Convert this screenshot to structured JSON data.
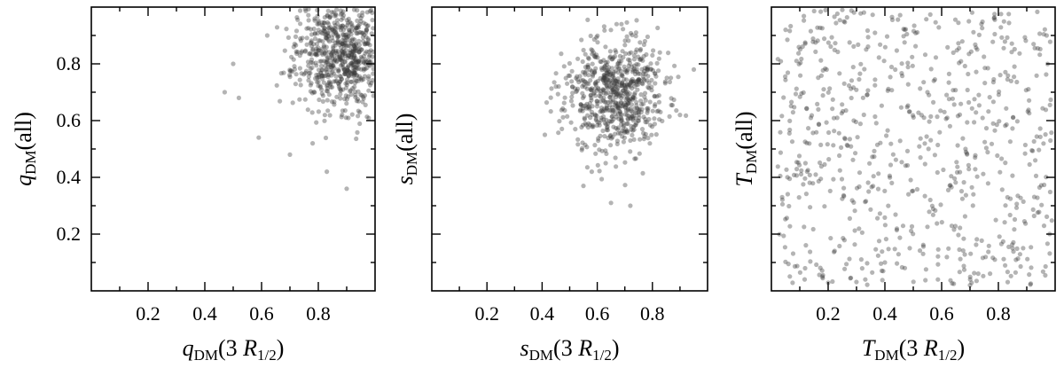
{
  "chart_data": [
    {
      "type": "scatter",
      "panel": "left",
      "xlabel_base": "q",
      "xlabel_sub": "DM",
      "xlabel_arg": "(3 R",
      "xlabel_arg_sub": "1/2",
      "xlabel_close": ")",
      "ylabel_base": "q",
      "ylabel_sub": "DM",
      "ylabel_arg": "(all)",
      "xlim": [
        0.0,
        1.0
      ],
      "ylim": [
        0.0,
        1.0
      ],
      "xticks": [
        "0.2",
        "0.4",
        "0.6",
        "0.8"
      ],
      "yticks": [
        "0.2",
        "0.4",
        "0.6",
        "0.8"
      ],
      "show_y_ticklabels": true,
      "distribution": {
        "kind": "gaussian",
        "n": 650,
        "mean": [
          0.88,
          0.84
        ],
        "std": [
          0.08,
          0.1
        ],
        "clip": [
          0.46,
          0.995,
          0.34,
          0.995
        ],
        "seed": 11
      },
      "sample_points": [
        [
          0.47,
          0.7
        ],
        [
          0.5,
          0.8
        ],
        [
          0.52,
          0.68
        ],
        [
          0.59,
          0.54
        ],
        [
          0.62,
          0.9
        ],
        [
          0.7,
          0.48
        ],
        [
          0.78,
          0.52
        ],
        [
          0.83,
          0.42
        ],
        [
          0.9,
          0.36
        ],
        [
          0.92,
          0.87
        ],
        [
          0.95,
          0.95
        ],
        [
          0.99,
          0.98
        ]
      ]
    },
    {
      "type": "scatter",
      "panel": "middle",
      "xlabel_base": "s",
      "xlabel_sub": "DM",
      "xlabel_arg": "(3 R",
      "xlabel_arg_sub": "1/2",
      "xlabel_close": ")",
      "ylabel_base": "s",
      "ylabel_sub": "DM",
      "ylabel_arg": "(all)",
      "xlim": [
        0.0,
        1.0
      ],
      "ylim": [
        0.0,
        1.0
      ],
      "xticks": [
        "0.2",
        "0.4",
        "0.6",
        "0.8"
      ],
      "yticks": [
        "0.2",
        "0.4",
        "0.6",
        "0.8"
      ],
      "show_y_ticklabels": false,
      "distribution": {
        "kind": "gaussian",
        "n": 700,
        "mean": [
          0.66,
          0.69
        ],
        "std": [
          0.09,
          0.1
        ],
        "clip": [
          0.4,
          0.96,
          0.3,
          0.96
        ],
        "seed": 23
      },
      "sample_points": [
        [
          0.41,
          0.55
        ],
        [
          0.45,
          0.72
        ],
        [
          0.55,
          0.37
        ],
        [
          0.58,
          0.42
        ],
        [
          0.63,
          0.86
        ],
        [
          0.65,
          0.31
        ],
        [
          0.67,
          0.94
        ],
        [
          0.72,
          0.3
        ],
        [
          0.8,
          0.83
        ],
        [
          0.9,
          0.62
        ],
        [
          0.95,
          0.78
        ]
      ]
    },
    {
      "type": "scatter",
      "panel": "right",
      "xlabel_base": "T",
      "xlabel_sub": "DM",
      "xlabel_arg": "(3 R",
      "xlabel_arg_sub": "1/2",
      "xlabel_close": ")",
      "ylabel_base": "T",
      "ylabel_sub": "DM",
      "ylabel_arg": "(all)",
      "xlim": [
        0.0,
        1.0
      ],
      "ylim": [
        0.0,
        1.0
      ],
      "xticks": [
        "0.2",
        "0.4",
        "0.6",
        "0.8"
      ],
      "yticks": [
        "0.2",
        "0.4",
        "0.6",
        "0.8"
      ],
      "show_y_ticklabels": false,
      "distribution": {
        "kind": "uniform",
        "n": 700,
        "clip": [
          0.02,
          0.99,
          0.02,
          0.99
        ],
        "seed": 37
      },
      "sample_points": [
        [
          0.05,
          0.92
        ],
        [
          0.12,
          0.45
        ],
        [
          0.18,
          0.05
        ],
        [
          0.25,
          0.99
        ],
        [
          0.4,
          0.1
        ],
        [
          0.55,
          0.7
        ],
        [
          0.7,
          0.02
        ],
        [
          0.85,
          0.15
        ],
        [
          0.97,
          0.9
        ]
      ]
    }
  ]
}
